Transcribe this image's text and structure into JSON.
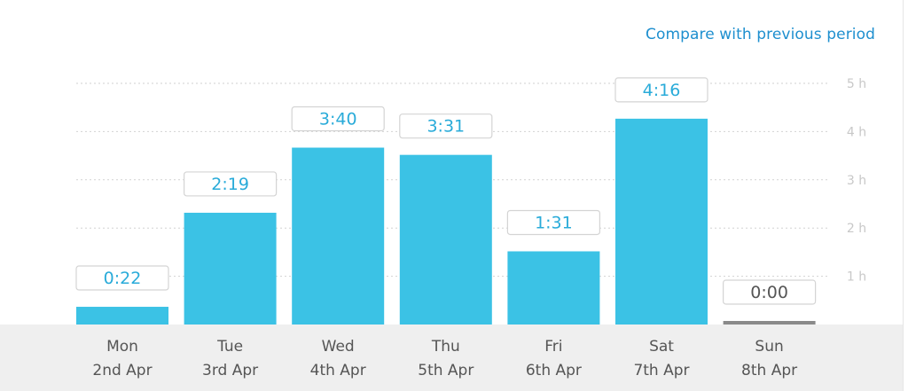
{
  "header": {
    "compare_label": "Compare with previous period"
  },
  "colors": {
    "bar": "#3bc2e5",
    "bar_zero": "#8a8a8a",
    "value_text": "#29abd9",
    "value_zero_text": "#555555",
    "gridline": "#d2d2d2",
    "axis_label": "#c8c8c8",
    "link": "#1e8fcf"
  },
  "chart_data": {
    "type": "bar",
    "categories": [
      "Mon",
      "Tue",
      "Wed",
      "Thu",
      "Fri",
      "Sat",
      "Sun"
    ],
    "dates": [
      "2nd Apr",
      "3rd Apr",
      "4th Apr",
      "5th Apr",
      "6th Apr",
      "7th Apr",
      "8th Apr"
    ],
    "values": [
      0.367,
      2.317,
      3.667,
      3.517,
      1.517,
      4.267,
      0
    ],
    "value_labels": [
      "0:22",
      "2:19",
      "3:40",
      "3:31",
      "1:31",
      "4:16",
      "0:00"
    ],
    "y_ticks": [
      {
        "value": 1,
        "label": "1 h"
      },
      {
        "value": 2,
        "label": "2 h"
      },
      {
        "value": 3,
        "label": "3 h"
      },
      {
        "value": 4,
        "label": "4 h"
      },
      {
        "value": 5,
        "label": "5 h"
      }
    ],
    "ylim": [
      0,
      5
    ],
    "grid": true
  }
}
